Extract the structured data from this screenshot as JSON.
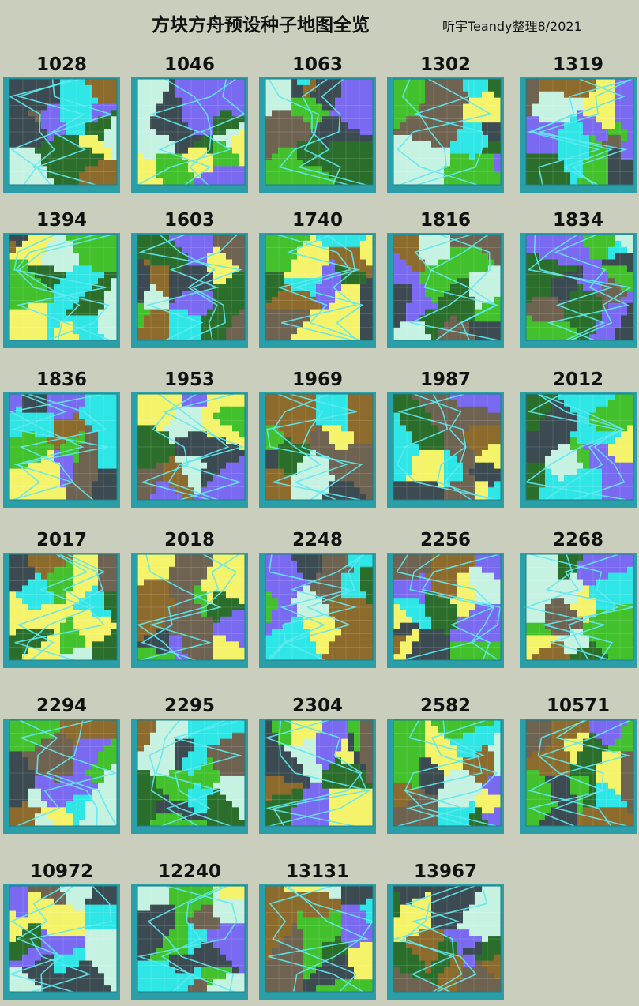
{
  "header": {
    "title": "方块方舟预设种子地图全览",
    "credit": "听宇Teandy整理8/2021"
  },
  "maps": [
    {
      "seed": "1028"
    },
    {
      "seed": "1046"
    },
    {
      "seed": "1063"
    },
    {
      "seed": "1302"
    },
    {
      "seed": "1319"
    },
    {
      "seed": "1394"
    },
    {
      "seed": "1603"
    },
    {
      "seed": "1740"
    },
    {
      "seed": "1816"
    },
    {
      "seed": "1834"
    },
    {
      "seed": "1836"
    },
    {
      "seed": "1953"
    },
    {
      "seed": "1969"
    },
    {
      "seed": "1987"
    },
    {
      "seed": "2012"
    },
    {
      "seed": "2017"
    },
    {
      "seed": "2018"
    },
    {
      "seed": "2248"
    },
    {
      "seed": "2256"
    },
    {
      "seed": "2268"
    },
    {
      "seed": "2294"
    },
    {
      "seed": "2295"
    },
    {
      "seed": "2304"
    },
    {
      "seed": "2582"
    },
    {
      "seed": "10571"
    },
    {
      "seed": "10972"
    },
    {
      "seed": "12240"
    },
    {
      "seed": "13131"
    },
    {
      "seed": "13967"
    }
  ]
}
